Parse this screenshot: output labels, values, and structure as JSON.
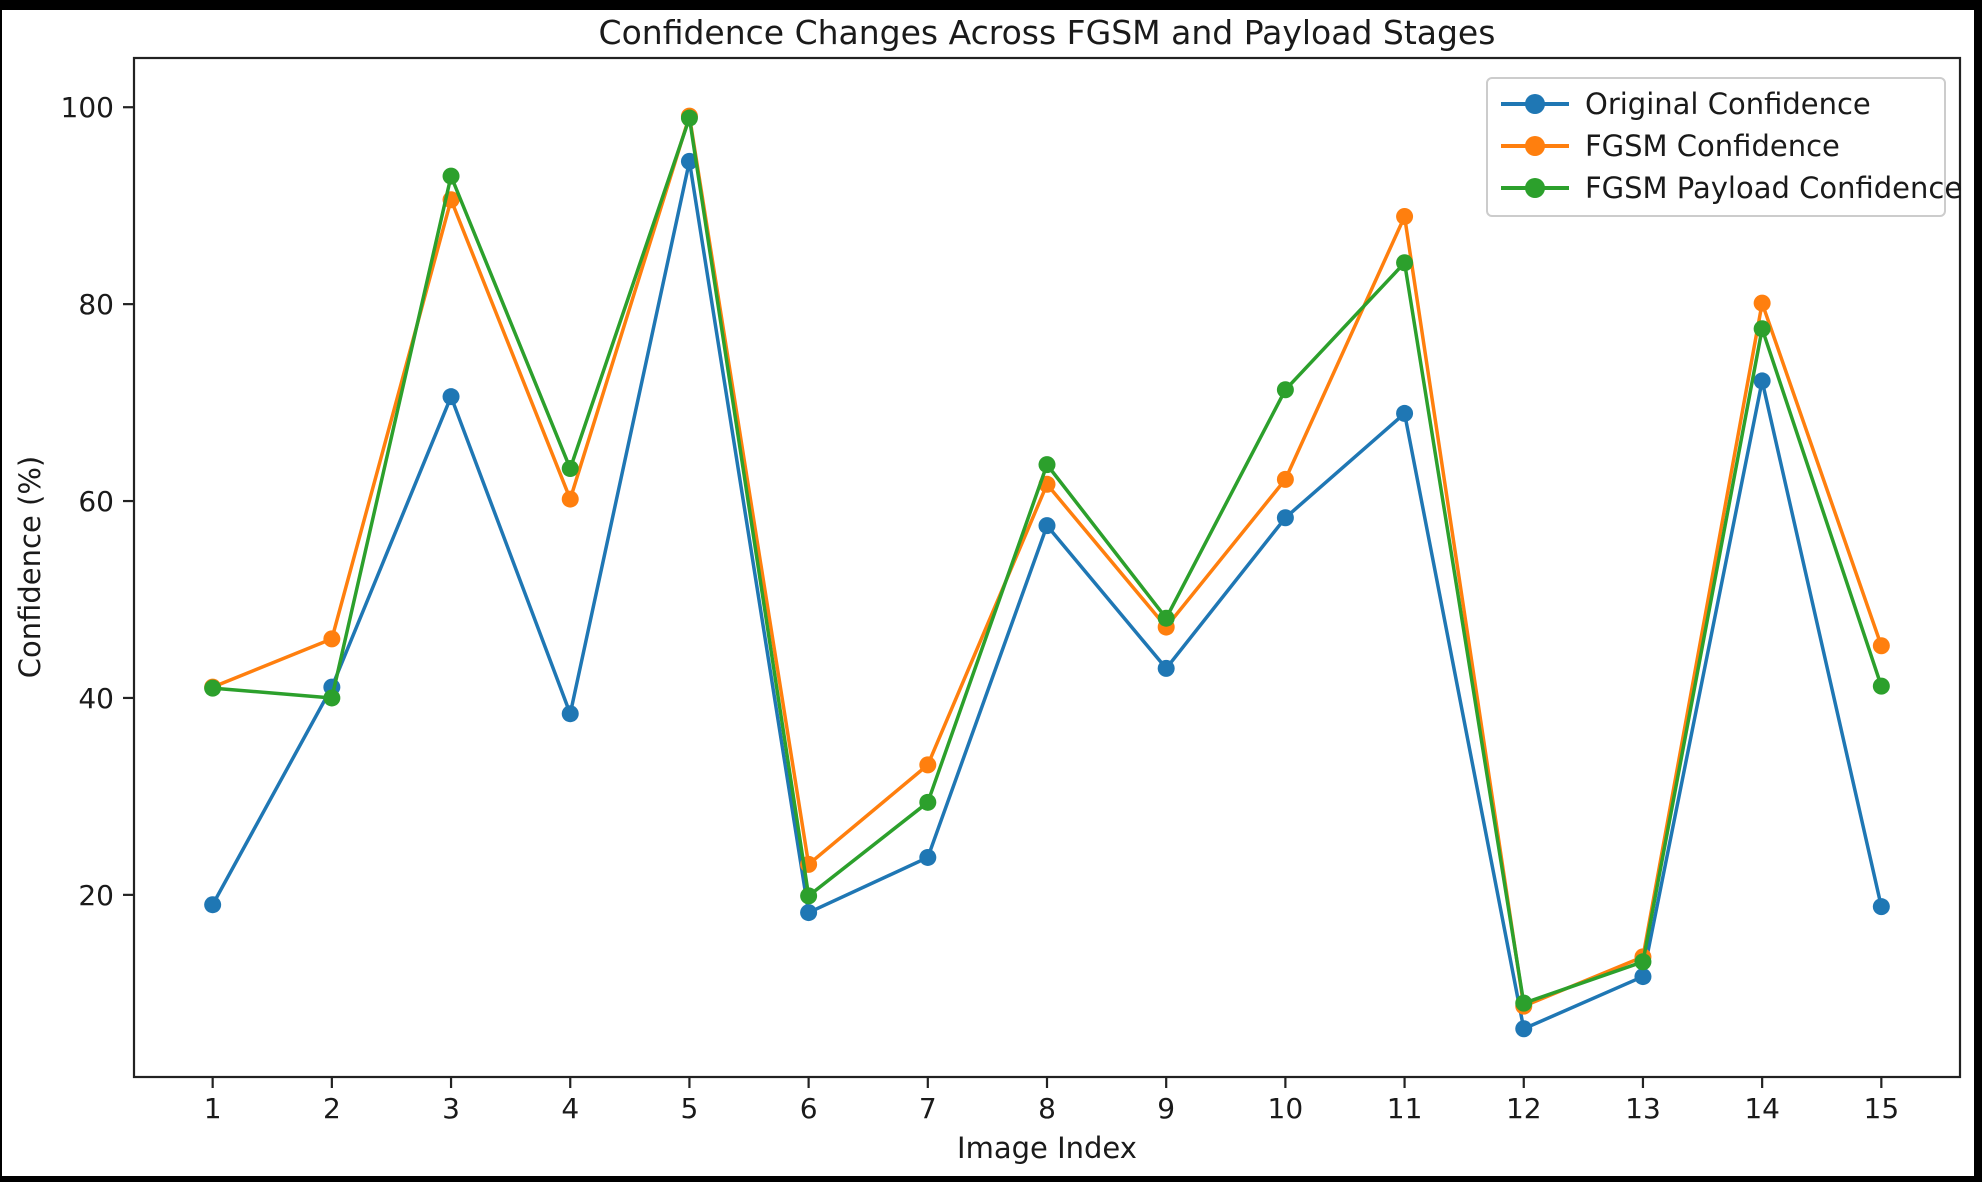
{
  "figure": {
    "background": "#ffffff",
    "frame_color": "#000000",
    "spine_color": "#222222",
    "text_color": "#1a1a1a"
  },
  "chart_data": {
    "type": "line",
    "title": "Confidence Changes Across FGSM and Payload Stages",
    "xlabel": "Image Index",
    "ylabel": "Confidence (%)",
    "x": [
      1,
      2,
      3,
      4,
      5,
      6,
      7,
      8,
      9,
      10,
      11,
      12,
      13,
      14,
      15
    ],
    "xticks": [
      1,
      2,
      3,
      4,
      5,
      6,
      7,
      8,
      9,
      10,
      11,
      12,
      13,
      14,
      15
    ],
    "yticks": [
      20,
      40,
      60,
      80,
      100
    ],
    "xlim": [
      0.34,
      15.66
    ],
    "ylim": [
      1.5,
      105.0
    ],
    "grid": false,
    "marker": "o",
    "legend": {
      "position": "upper right",
      "entries": [
        "Original Confidence",
        "FGSM Confidence",
        "FGSM Payload Confidence"
      ]
    },
    "series": [
      {
        "name": "Original Confidence",
        "color": "#1f77b4",
        "values": [
          19.0,
          41.1,
          70.6,
          38.4,
          94.5,
          18.2,
          23.8,
          57.5,
          43.0,
          58.3,
          68.9,
          6.4,
          11.7,
          72.2,
          18.8
        ]
      },
      {
        "name": "FGSM Confidence",
        "color": "#ff7f0e",
        "values": [
          41.1,
          46.0,
          90.6,
          60.2,
          99.1,
          23.1,
          33.2,
          61.7,
          47.2,
          62.2,
          88.9,
          8.7,
          13.7,
          80.1,
          45.3
        ]
      },
      {
        "name": "FGSM Payload Confidence",
        "color": "#2ca02c",
        "values": [
          41.0,
          40.0,
          93.0,
          63.3,
          98.9,
          19.9,
          29.4,
          63.7,
          48.1,
          71.3,
          84.2,
          9.0,
          13.2,
          77.5,
          41.2
        ]
      }
    ]
  }
}
